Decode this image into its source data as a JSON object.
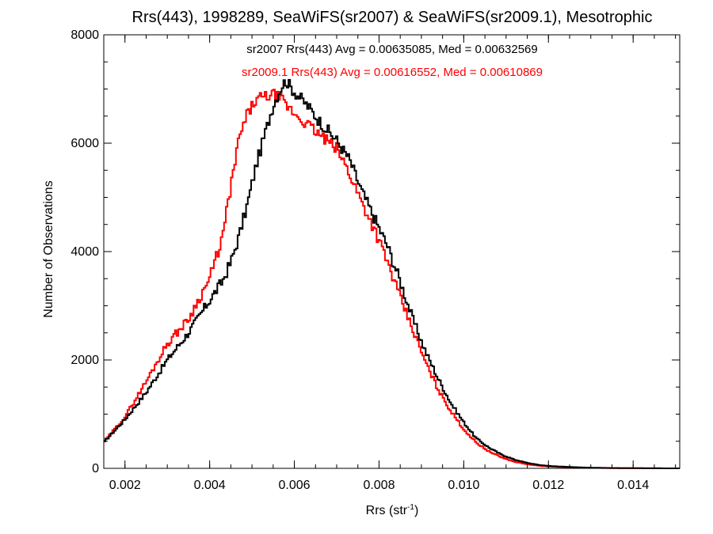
{
  "chart_data": {
    "type": "line",
    "title": "Rrs(443), 1998289, SeaWiFS(sr2007) & SeaWiFS(sr2009.1), Mesotrophic",
    "xlabel": "Rrs (str",
    "xlabel_superscript": "-1",
    "xlabel_close": ")",
    "ylabel": "Number of Observations",
    "xlim": [
      0.0015,
      0.0151
    ],
    "ylim": [
      0,
      8000
    ],
    "x_ticks": [
      0.002,
      0.004,
      0.006,
      0.008,
      0.01,
      0.012,
      0.014
    ],
    "x_tick_labels": [
      "0.002",
      "0.004",
      "0.006",
      "0.008",
      "0.010",
      "0.012",
      "0.014"
    ],
    "y_ticks": [
      0,
      2000,
      4000,
      6000,
      8000
    ],
    "y_tick_labels": [
      "0",
      "2000",
      "4000",
      "6000",
      "8000"
    ],
    "grid": false,
    "step": true,
    "series": [
      {
        "name": "sr2007",
        "color": "#000000",
        "stats_text": "sr2007 Rrs(443) Avg = 0.00635085, Med = 0.00632569",
        "points": [
          [
            0.0015,
            480
          ],
          [
            0.002,
            900
          ],
          [
            0.0025,
            1400
          ],
          [
            0.003,
            2000
          ],
          [
            0.0035,
            2500
          ],
          [
            0.004,
            3100
          ],
          [
            0.0043,
            3450
          ],
          [
            0.0045,
            3800
          ],
          [
            0.0047,
            4300
          ],
          [
            0.0049,
            4900
          ],
          [
            0.0051,
            5600
          ],
          [
            0.0053,
            6150
          ],
          [
            0.0055,
            6700
          ],
          [
            0.0057,
            7050
          ],
          [
            0.0058,
            7150
          ],
          [
            0.006,
            6950
          ],
          [
            0.0063,
            6700
          ],
          [
            0.0066,
            6400
          ],
          [
            0.007,
            6050
          ],
          [
            0.0073,
            5700
          ],
          [
            0.0076,
            5100
          ],
          [
            0.0079,
            4600
          ],
          [
            0.0082,
            4100
          ],
          [
            0.0085,
            3450
          ],
          [
            0.0088,
            2750
          ],
          [
            0.0091,
            2150
          ],
          [
            0.0094,
            1650
          ],
          [
            0.0097,
            1200
          ],
          [
            0.01,
            850
          ],
          [
            0.0103,
            550
          ],
          [
            0.0106,
            380
          ],
          [
            0.0109,
            250
          ],
          [
            0.0112,
            160
          ],
          [
            0.0115,
            100
          ],
          [
            0.0118,
            60
          ],
          [
            0.0121,
            40
          ],
          [
            0.0125,
            25
          ],
          [
            0.013,
            12
          ],
          [
            0.0135,
            6
          ],
          [
            0.014,
            3
          ],
          [
            0.0145,
            1
          ],
          [
            0.0151,
            0
          ]
        ]
      },
      {
        "name": "sr2009.1",
        "color": "#ff0000",
        "stats_text": "sr2009.1 Rrs(443) Avg = 0.00616552, Med = 0.00610869",
        "points": [
          [
            0.0015,
            480
          ],
          [
            0.002,
            950
          ],
          [
            0.0025,
            1600
          ],
          [
            0.003,
            2300
          ],
          [
            0.0035,
            2750
          ],
          [
            0.004,
            3500
          ],
          [
            0.0043,
            4250
          ],
          [
            0.0045,
            5200
          ],
          [
            0.0047,
            6100
          ],
          [
            0.0049,
            6550
          ],
          [
            0.0051,
            6800
          ],
          [
            0.0053,
            6850
          ],
          [
            0.0055,
            6900
          ],
          [
            0.0057,
            6800
          ],
          [
            0.0058,
            6700
          ],
          [
            0.006,
            6550
          ],
          [
            0.0063,
            6350
          ],
          [
            0.0066,
            6150
          ],
          [
            0.007,
            5900
          ],
          [
            0.0073,
            5450
          ],
          [
            0.0076,
            4900
          ],
          [
            0.0079,
            4400
          ],
          [
            0.0082,
            3800
          ],
          [
            0.0085,
            3150
          ],
          [
            0.0088,
            2550
          ],
          [
            0.0091,
            1950
          ],
          [
            0.0094,
            1450
          ],
          [
            0.0097,
            1050
          ],
          [
            0.01,
            720
          ],
          [
            0.0103,
            470
          ],
          [
            0.0106,
            310
          ],
          [
            0.0109,
            200
          ],
          [
            0.0112,
            120
          ],
          [
            0.0115,
            75
          ],
          [
            0.0118,
            45
          ],
          [
            0.0121,
            30
          ],
          [
            0.0125,
            18
          ],
          [
            0.013,
            9
          ],
          [
            0.0135,
            4
          ],
          [
            0.014,
            2
          ],
          [
            0.0145,
            1
          ],
          [
            0.0151,
            0
          ]
        ]
      }
    ]
  }
}
